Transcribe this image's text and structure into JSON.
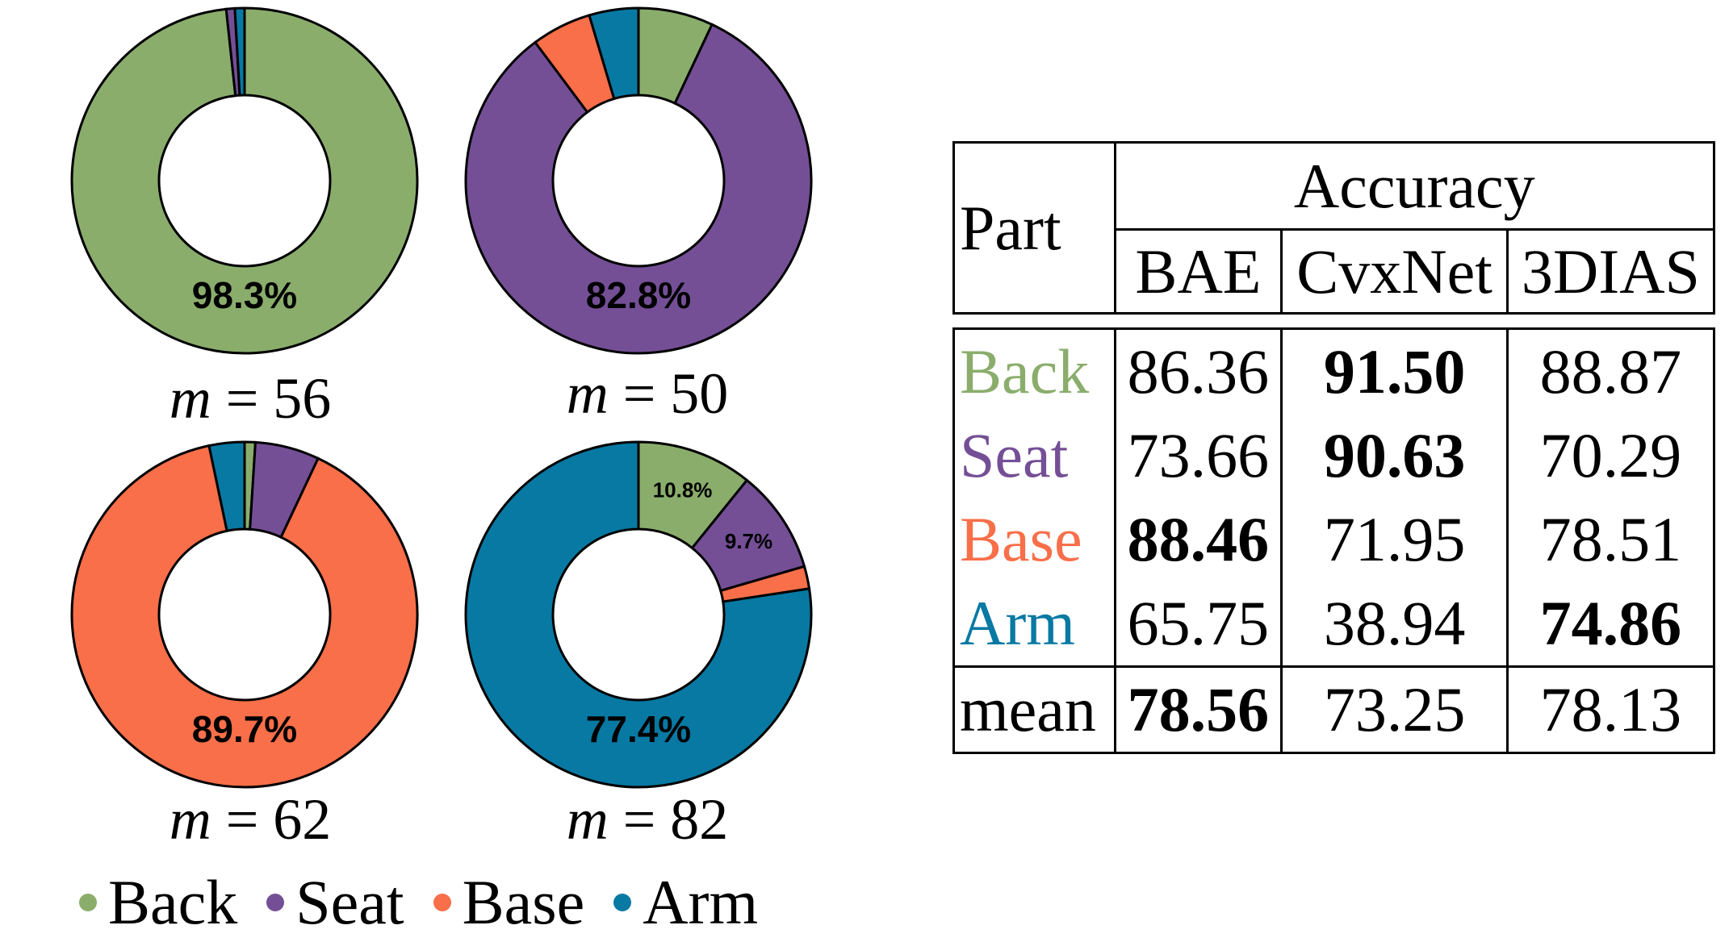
{
  "chart_data": {
    "type": "pie",
    "colors": {
      "Back": "#8aad6c",
      "Seat": "#744f96",
      "Base": "#f86f49",
      "Arm": "#0879a3"
    },
    "legend": [
      "Back",
      "Seat",
      "Base",
      "Arm"
    ],
    "charts": [
      {
        "m_label": "m = 56",
        "center_text": "98.3%",
        "slices": [
          {
            "name": "Back",
            "value": 98.3
          },
          {
            "name": "Seat",
            "value": 0.8
          },
          {
            "name": "Arm",
            "value": 0.9
          }
        ]
      },
      {
        "m_label": "m = 50",
        "center_text": "82.8%",
        "slices": [
          {
            "name": "Back",
            "value": 7.0
          },
          {
            "name": "Seat",
            "value": 82.8
          },
          {
            "name": "Base",
            "value": 5.6
          },
          {
            "name": "Arm",
            "value": 4.6
          }
        ]
      },
      {
        "m_label": "m = 62",
        "center_text": "89.7%",
        "slices": [
          {
            "name": "Back",
            "value": 1.0
          },
          {
            "name": "Seat",
            "value": 6.0
          },
          {
            "name": "Base",
            "value": 89.7
          },
          {
            "name": "Arm",
            "value": 3.3
          }
        ]
      },
      {
        "m_label": "m = 82",
        "center_text": "77.4%",
        "slices": [
          {
            "name": "Back",
            "value": 10.8,
            "label": "10.8%"
          },
          {
            "name": "Seat",
            "value": 9.7,
            "label": "9.7%"
          },
          {
            "name": "Base",
            "value": 2.1
          },
          {
            "name": "Arm",
            "value": 77.4
          }
        ]
      }
    ]
  },
  "table": {
    "part_header": "Part",
    "group_header": "Accuracy",
    "columns": [
      "BAE",
      "CvxNet",
      "3DIAS"
    ],
    "rows": [
      {
        "part": "Back",
        "values": [
          "86.36",
          "91.50",
          "88.87"
        ]
      },
      {
        "part": "Seat",
        "values": [
          "73.66",
          "90.63",
          "70.29"
        ]
      },
      {
        "part": "Base",
        "values": [
          "88.46",
          "71.95",
          "78.51"
        ]
      },
      {
        "part": "Arm",
        "values": [
          "65.75",
          "38.94",
          "74.86"
        ]
      }
    ],
    "mean": {
      "part": "mean",
      "values": [
        "78.56",
        "73.25",
        "78.13"
      ]
    }
  }
}
